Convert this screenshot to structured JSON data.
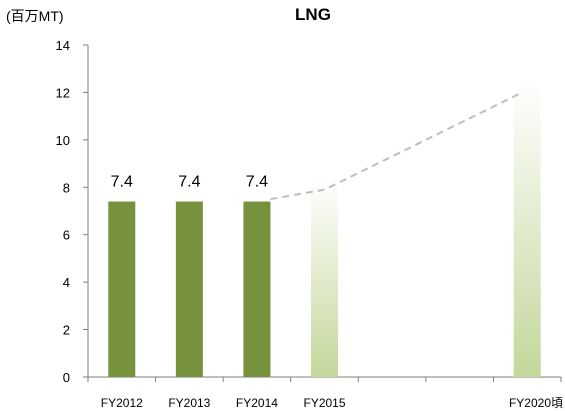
{
  "chart_data": {
    "type": "bar",
    "title": "LNG",
    "unit_label": "(百万MT)",
    "ylim": [
      0,
      14
    ],
    "yticks": [
      "0",
      "2",
      "4",
      "6",
      "8",
      "10",
      "12",
      "14"
    ],
    "categories": [
      "FY2012",
      "FY2013",
      "FY2014",
      "FY2015",
      "",
      "",
      "FY2020頃"
    ],
    "values": [
      7.4,
      7.4,
      7.4,
      8.3,
      null,
      null,
      12.5
    ],
    "data_labels": [
      "7.4",
      "7.4",
      "7.4",
      "",
      "",
      "",
      ""
    ],
    "projected": [
      false,
      false,
      false,
      true,
      false,
      false,
      true
    ],
    "trend_line": [
      {
        "category": "FY2014",
        "value": 7.5
      },
      {
        "category": "FY2015",
        "value": 7.9
      },
      {
        "category": "FY2020頃",
        "value": 12
      }
    ],
    "grid": false,
    "colors": {
      "actual": "#76923c",
      "projected_top": "#ffffff",
      "projected_bottom": "#c4d79b",
      "trend": "#bfbfbf",
      "axis": "#7f7f7f"
    }
  }
}
